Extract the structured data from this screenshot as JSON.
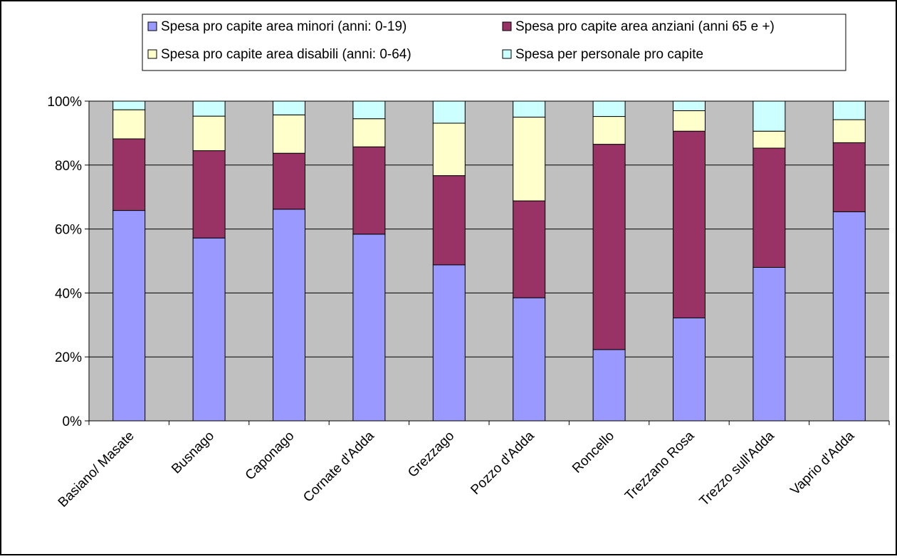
{
  "chart_data": {
    "type": "bar",
    "stacked": "percent",
    "categories": [
      "Basiano/ Masate",
      "Busnago",
      "Caponago",
      "Cornate d'Adda",
      "Grezzago",
      "Pozzo d'Adda",
      "Roncello",
      "Trezzano Rosa",
      "Trezzo sull'Adda",
      "Vaprio d'Adda"
    ],
    "series": [
      {
        "name": "Spesa pro capite area minori (anni: 0-19)",
        "color": "#9999ff",
        "values": [
          65.8,
          57.2,
          66.2,
          58.4,
          48.8,
          38.5,
          22.3,
          32.2,
          48.0,
          65.4
        ]
      },
      {
        "name": "Spesa pro capite area anziani (anni 65 e +)",
        "color": "#993366",
        "values": [
          22.4,
          27.3,
          17.5,
          27.3,
          27.9,
          30.3,
          64.2,
          58.4,
          37.3,
          21.6
        ]
      },
      {
        "name": "Spesa pro capite area disabili (anni: 0-64)",
        "color": "#ffffcc",
        "values": [
          9.1,
          10.8,
          12.0,
          8.8,
          16.4,
          26.2,
          8.7,
          6.4,
          5.3,
          7.2
        ]
      },
      {
        "name": "Spesa per personale pro capite",
        "color": "#ccffff",
        "values": [
          2.7,
          4.7,
          4.3,
          5.5,
          6.9,
          5.0,
          4.8,
          3.0,
          9.4,
          5.8
        ]
      }
    ],
    "yticks": [
      "0%",
      "20%",
      "40%",
      "60%",
      "80%",
      "100%"
    ],
    "ylim": [
      0,
      100
    ],
    "grid": true,
    "legend_position": "top",
    "plot_background": "#c0c0c0"
  }
}
